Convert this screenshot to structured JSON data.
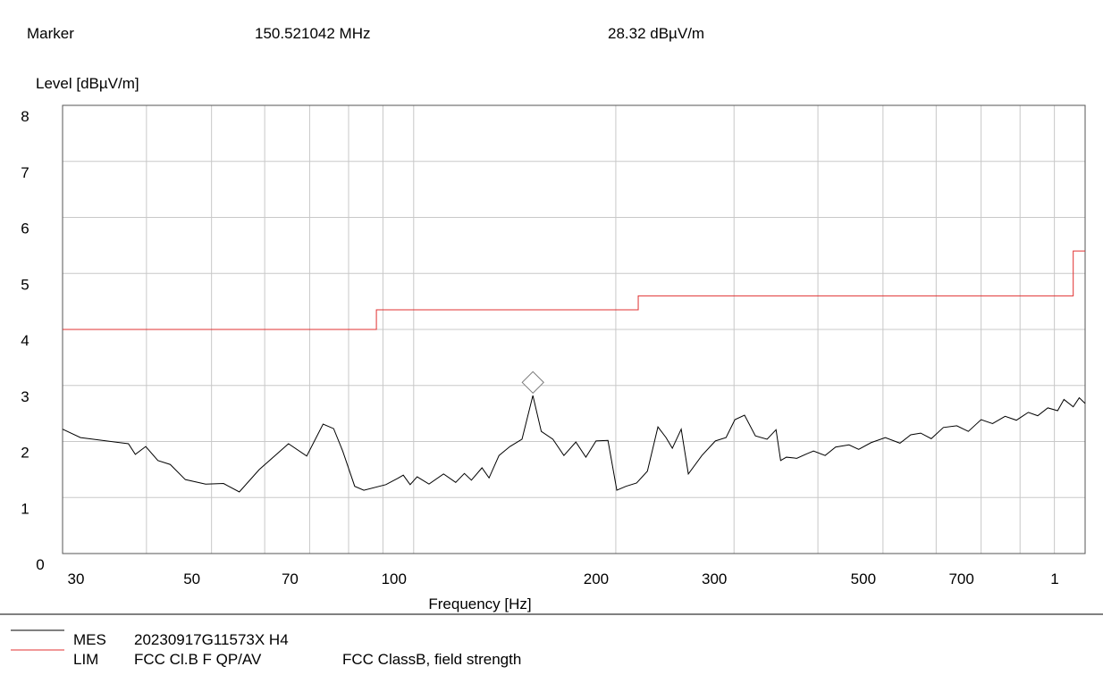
{
  "chart_data": {
    "type": "line",
    "marker_title": "Marker",
    "marker_freq_label": "150.521042 MHz",
    "marker_level_label": "28.32 dBµV/m",
    "marker_x": 150.521042,
    "marker_y": 2.832,
    "ylabel": "Level [dBµV/m]",
    "xlabel": "Frequency [Hz]",
    "xscale": "log",
    "xlim": [
      30,
      1000
    ],
    "xticks": [
      30,
      50,
      70,
      100,
      200,
      300,
      500,
      700,
      {
        "value": 1000,
        "label": "1"
      }
    ],
    "xminor": [
      40,
      60,
      80,
      90,
      400,
      600,
      800,
      900
    ],
    "ylim": [
      0,
      8
    ],
    "yticks": [
      0,
      1,
      2,
      3,
      4,
      5,
      6,
      7,
      8
    ],
    "grid": true,
    "series": [
      {
        "name": "MES",
        "description": "20230917G11573X H4",
        "color": "#000000",
        "x": [
          30,
          31.9,
          37.6,
          38.5,
          39.9,
          41.6,
          43.4,
          45.7,
          49,
          52.1,
          55,
          58.9,
          65.1,
          69.3,
          73.3,
          76,
          78.4,
          81.7,
          84.3,
          90.9,
          94.6,
          96.5,
          98.8,
          101.2,
          105.4,
          110.8,
          115.5,
          119,
          121.9,
          126.4,
          129.5,
          134,
          139.1,
          145,
          150.5,
          154.9,
          161.2,
          167.4,
          174.4,
          180.5,
          186.9,
          194.7,
          200.7,
          207.1,
          214.8,
          222.9,
          231.1,
          237.6,
          242.8,
          250.3,
          256.5,
          268.7,
          281.4,
          291.9,
          300.9,
          311,
          322.8,
          336,
          346.5,
          352,
          359,
          372,
          385,
          394,
          410,
          425,
          445,
          460,
          480,
          504,
          530,
          550,
          569,
          590,
          615,
          644,
          670,
          700,
          728,
          760,
          790,
          823,
          850,
          880,
          910,
          930,
          960,
          980,
          1000
        ],
        "values": [
          2.22,
          2.07,
          1.96,
          1.77,
          1.91,
          1.66,
          1.59,
          1.32,
          1.24,
          1.25,
          1.1,
          1.5,
          1.96,
          1.74,
          2.31,
          2.23,
          1.83,
          1.2,
          1.13,
          1.23,
          1.34,
          1.4,
          1.23,
          1.37,
          1.24,
          1.42,
          1.27,
          1.43,
          1.31,
          1.53,
          1.35,
          1.75,
          1.91,
          2.04,
          2.82,
          2.18,
          2.04,
          1.75,
          1.99,
          1.72,
          2.01,
          2.02,
          1.13,
          1.2,
          1.26,
          1.47,
          2.26,
          2.07,
          1.88,
          2.22,
          1.42,
          1.75,
          2.01,
          2.07,
          2.39,
          2.47,
          2.1,
          2.04,
          2.21,
          1.66,
          1.72,
          1.7,
          1.78,
          1.83,
          1.75,
          1.9,
          1.94,
          1.86,
          1.98,
          2.07,
          1.97,
          2.12,
          2.15,
          2.05,
          2.25,
          2.28,
          2.18,
          2.39,
          2.32,
          2.45,
          2.38,
          2.52,
          2.46,
          2.6,
          2.55,
          2.75,
          2.62,
          2.78,
          2.68
        ]
      },
      {
        "name": "LIM",
        "description": "FCC Cl.B F QP/AV",
        "note": "FCC ClassB, field strength",
        "color": "#e03030",
        "x": [
          30,
          88,
          88,
          216,
          216,
          960,
          960,
          1000
        ],
        "values": [
          4,
          4,
          4.35,
          4.35,
          4.6,
          4.6,
          5.4,
          5.4
        ]
      }
    ]
  }
}
